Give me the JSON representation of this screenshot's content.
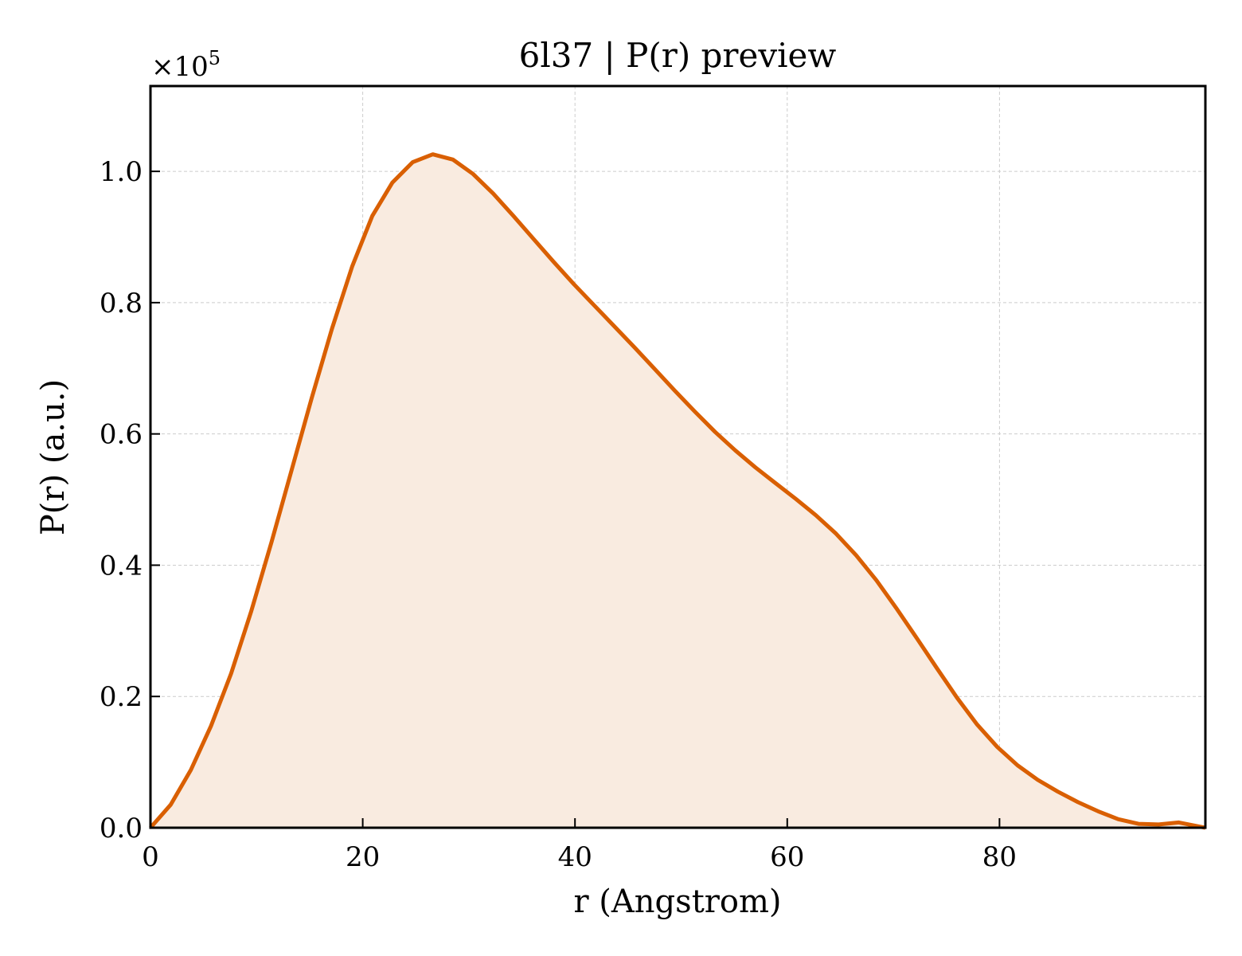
{
  "chart_data": {
    "type": "area",
    "title": "6l37 | P(r) preview",
    "xlabel": "r (Angstrom)",
    "ylabel": "P(r) (a.u.)",
    "y_multiplier": {
      "base": "×10",
      "exponent": "5"
    },
    "xlim": [
      0,
      99.4
    ],
    "ylim": [
      0,
      1.13
    ],
    "x_ticks": [
      0,
      20,
      40,
      60,
      80
    ],
    "x_tick_labels": [
      "0",
      "20",
      "40",
      "60",
      "80"
    ],
    "y_ticks": [
      0.0,
      0.2,
      0.4,
      0.6,
      0.8,
      1.0
    ],
    "y_tick_labels": [
      "0.0",
      "0.2",
      "0.4",
      "0.6",
      "0.8",
      "1.0"
    ],
    "grid": true,
    "line_color": "#d95f02",
    "fill_color": "#f9ebe0",
    "series": [
      {
        "x": [
          0,
          1.9,
          3.8,
          5.7,
          7.6,
          9.5,
          11.4,
          13.3,
          15.2,
          17.1,
          19.0,
          20.9,
          22.8,
          24.7,
          26.6,
          28.5,
          30.4,
          32.3,
          34.2,
          36.1,
          38.0,
          39.9,
          41.8,
          43.7,
          45.6,
          47.5,
          49.4,
          51.3,
          53.2,
          55.1,
          57.0,
          58.9,
          60.8,
          62.7,
          64.6,
          66.5,
          68.4,
          70.3,
          72.2,
          74.1,
          76.0,
          77.9,
          79.8,
          81.7,
          83.6,
          85.5,
          87.4,
          89.3,
          91.2,
          93.1,
          95.0,
          96.9,
          98.8,
          99.4
        ],
        "values": [
          0.0,
          0.035,
          0.088,
          0.155,
          0.235,
          0.33,
          0.435,
          0.545,
          0.655,
          0.76,
          0.855,
          0.932,
          0.983,
          1.014,
          1.026,
          1.018,
          0.996,
          0.966,
          0.932,
          0.897,
          0.862,
          0.828,
          0.796,
          0.764,
          0.732,
          0.699,
          0.666,
          0.634,
          0.603,
          0.575,
          0.549,
          0.525,
          0.501,
          0.476,
          0.448,
          0.415,
          0.377,
          0.334,
          0.289,
          0.243,
          0.198,
          0.157,
          0.123,
          0.095,
          0.073,
          0.055,
          0.039,
          0.025,
          0.013,
          0.006,
          0.005,
          0.008,
          0.002,
          0.0
        ]
      }
    ]
  }
}
